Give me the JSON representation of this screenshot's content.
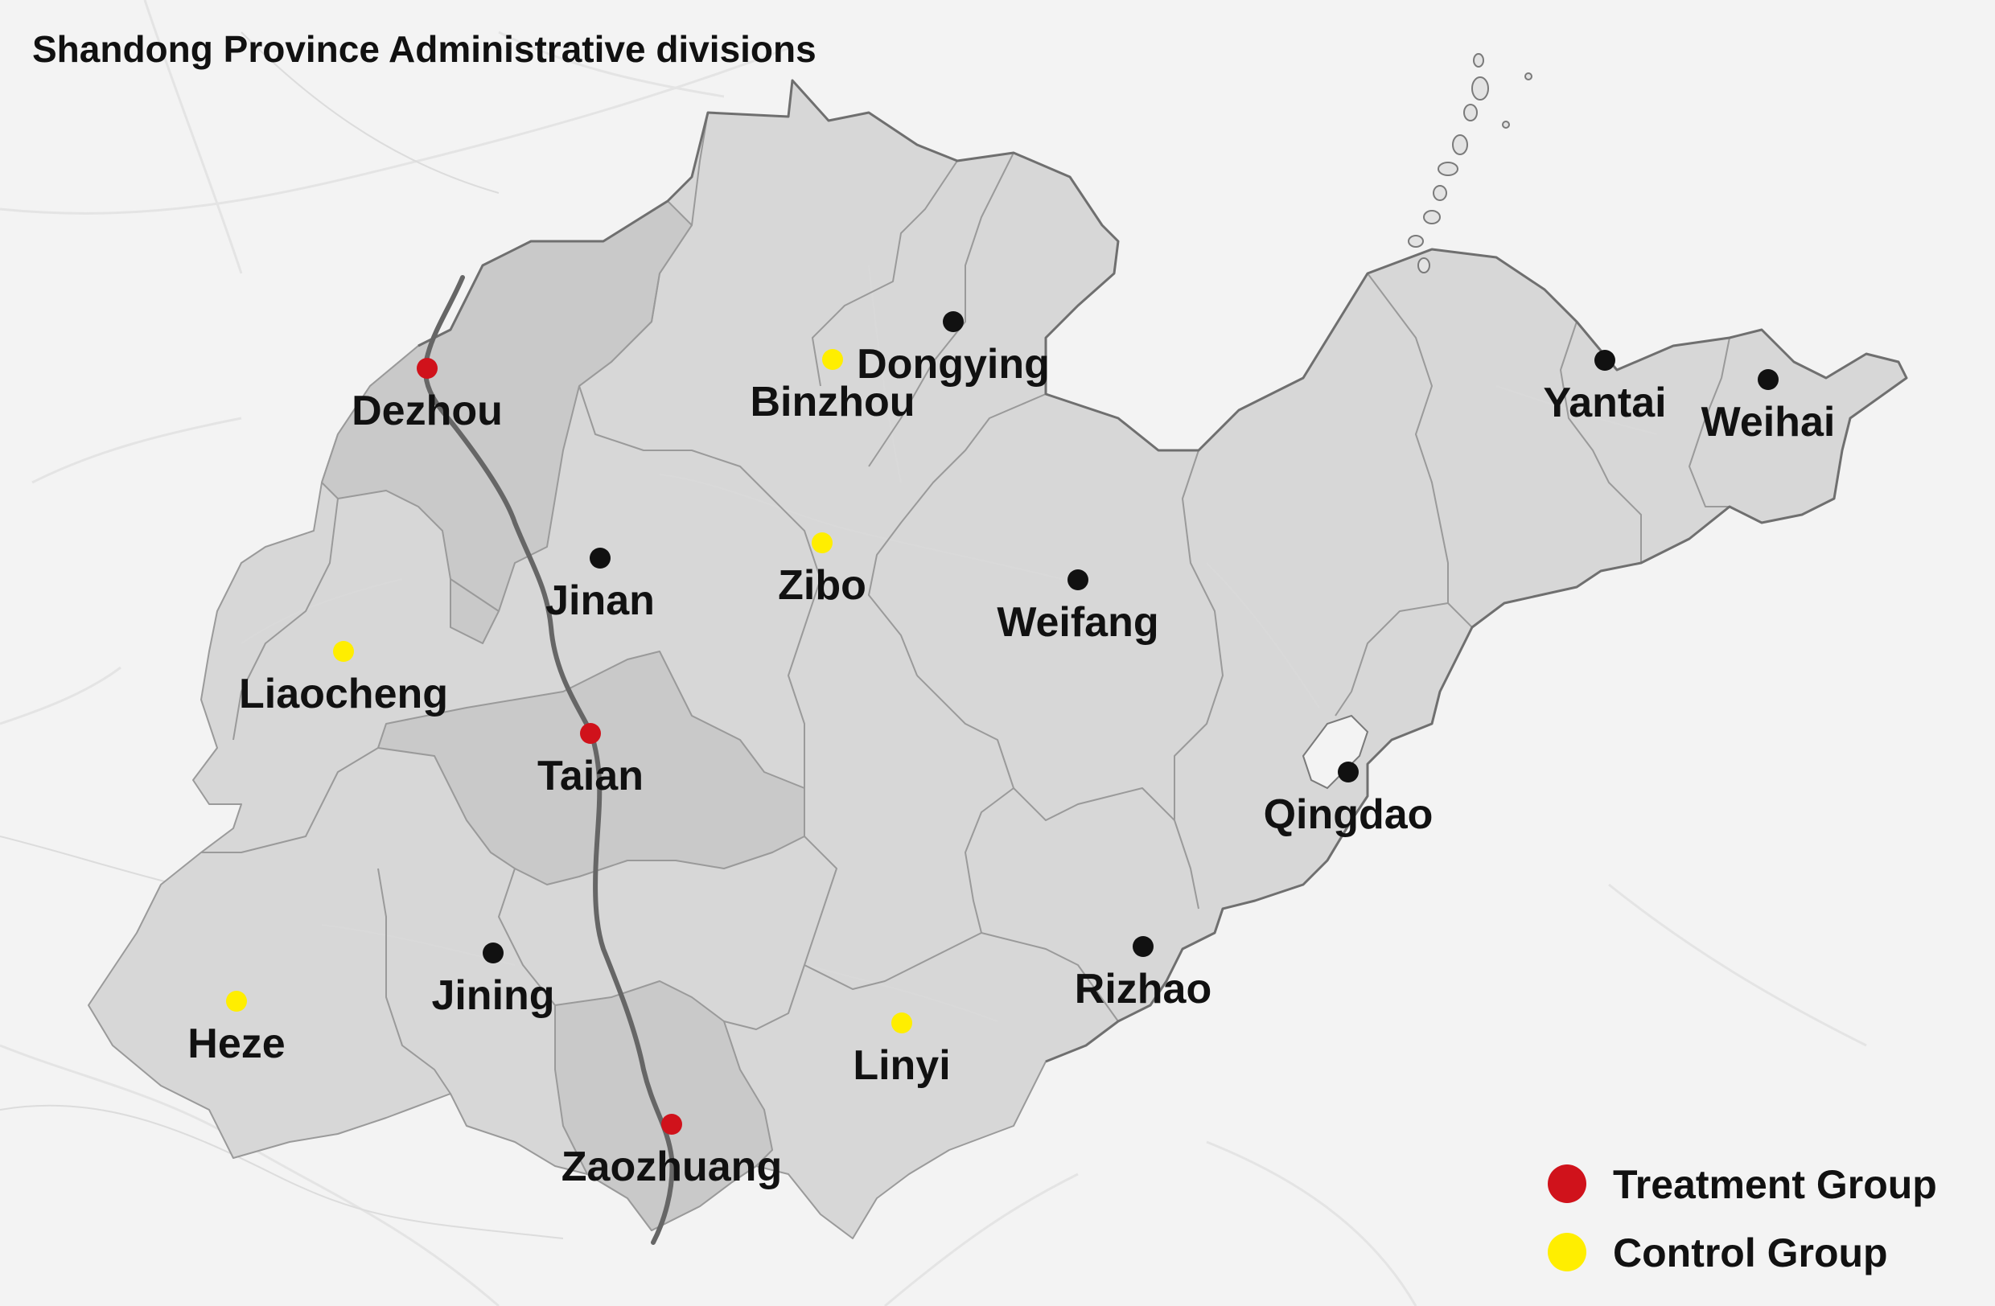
{
  "title": "Shandong Province Administrative divisions",
  "colors": {
    "treatment": "#d0121b",
    "control": "#ffee00",
    "other": "#111111",
    "province_fill": "#d7d7d7",
    "treatment_region_fill": "#c9c9c9",
    "route_line": "#666666",
    "background": "#f3f3f3"
  },
  "cities": [
    {
      "name": "Dezhou",
      "group": "treatment"
    },
    {
      "name": "Taian",
      "group": "treatment"
    },
    {
      "name": "Zaozhuang",
      "group": "treatment"
    },
    {
      "name": "Binzhou",
      "group": "control"
    },
    {
      "name": "Zibo",
      "group": "control"
    },
    {
      "name": "Liaocheng",
      "group": "control"
    },
    {
      "name": "Heze",
      "group": "control"
    },
    {
      "name": "Linyi",
      "group": "control"
    },
    {
      "name": "Dongying",
      "group": "other"
    },
    {
      "name": "Jinan",
      "group": "other"
    },
    {
      "name": "Weifang",
      "group": "other"
    },
    {
      "name": "Yantai",
      "group": "other"
    },
    {
      "name": "Weihai",
      "group": "other"
    },
    {
      "name": "Qingdao",
      "group": "other"
    },
    {
      "name": "Rizhao",
      "group": "other"
    },
    {
      "name": "Jining",
      "group": "other"
    }
  ],
  "legend": [
    {
      "group": "treatment",
      "label": "Treatment Group"
    },
    {
      "group": "control",
      "label": "Control Group"
    }
  ]
}
